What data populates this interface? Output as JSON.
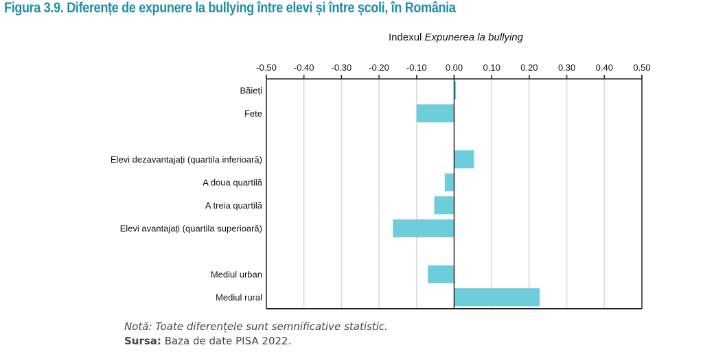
{
  "figure": {
    "title": "Figura 3.9. Diferențe de expunere la bullying între elevi și între școli, în România",
    "note": "Notă: Toate diferențele sunt semnificative statistic.",
    "source_label": "Sursa:",
    "source_text": " Baza de date PISA 2022."
  },
  "colors": {
    "title": "#1f8fa8",
    "bar": "#6ecddb",
    "gridline": "#d9d9d9",
    "axis": "#222222"
  },
  "chart_data": {
    "type": "bar",
    "orientation": "horizontal",
    "title_prefix": "Indexul ",
    "title_italic": "Expunerea la bullying",
    "xlabel": "",
    "ylabel": "",
    "xlim": [
      -0.5,
      0.5
    ],
    "x_ticks": [
      -0.5,
      -0.4,
      -0.3,
      -0.2,
      -0.1,
      0.0,
      0.1,
      0.2,
      0.3,
      0.4,
      0.5
    ],
    "x_tick_labels": [
      "-0.50",
      "-0.40",
      "-0.30",
      "-0.20",
      "-0.10",
      "0.00",
      "0.10",
      "0.20",
      "0.30",
      "0.40",
      "0.50"
    ],
    "x_axis_position": "top",
    "grid": true,
    "legend": "none",
    "categories": [
      "Băieți",
      "Fete",
      "",
      "Elevi dezavantajați (quartila inferioară)",
      "A doua quartilă",
      "A treia quartilă",
      "Elevi avantajați (quartila superioară)",
      "",
      "Mediul urban",
      "Mediul rural"
    ],
    "values": [
      0.005,
      -0.1,
      null,
      0.053,
      -0.025,
      -0.053,
      -0.163,
      null,
      -0.07,
      0.228
    ]
  }
}
